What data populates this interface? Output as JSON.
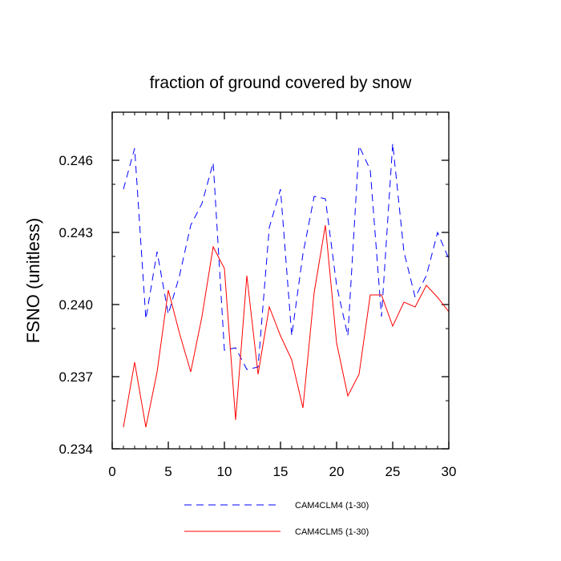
{
  "chart_data": {
    "type": "line",
    "title": "fraction of ground covered by snow",
    "xlabel": "",
    "ylabel": "FSNO  (unitless)",
    "xlim": [
      0,
      30
    ],
    "ylim": [
      0.234,
      0.248
    ],
    "x_ticks": [
      0,
      5,
      10,
      15,
      20,
      25,
      30
    ],
    "x_tick_labels": [
      "0",
      "5",
      "10",
      "15",
      "20",
      "25",
      "30"
    ],
    "y_ticks": [
      0.234,
      0.237,
      0.24,
      0.243,
      0.246
    ],
    "y_tick_labels": [
      "0.234",
      "0.237",
      "0.240",
      "0.243",
      "0.246"
    ],
    "grid": false,
    "legend_position": "bottom",
    "x": [
      1,
      2,
      3,
      4,
      5,
      6,
      7,
      8,
      9,
      10,
      11,
      12,
      13,
      14,
      15,
      16,
      17,
      18,
      19,
      20,
      21,
      22,
      23,
      24,
      25,
      26,
      27,
      28,
      29,
      30
    ],
    "series": [
      {
        "name": "CAM4CLM4 (1-30)",
        "color": "#0000ff",
        "dash": "dashed",
        "values": [
          0.2448,
          0.2465,
          0.2394,
          0.2422,
          0.2396,
          0.2412,
          0.2433,
          0.2442,
          0.2459,
          0.2381,
          0.2382,
          0.2373,
          0.2374,
          0.2432,
          0.2448,
          0.2387,
          0.2421,
          0.2445,
          0.2444,
          0.2408,
          0.2387,
          0.2466,
          0.2456,
          0.2395,
          0.2467,
          0.2422,
          0.2403,
          0.2412,
          0.243,
          0.2419
        ]
      },
      {
        "name": "CAM4CLM5 (1-30)",
        "color": "#ff0000",
        "dash": "solid",
        "values": [
          0.2349,
          0.2376,
          0.2349,
          0.2372,
          0.2406,
          0.2388,
          0.2372,
          0.2395,
          0.2424,
          0.2415,
          0.2352,
          0.2412,
          0.2371,
          0.2399,
          0.2387,
          0.2377,
          0.2357,
          0.2405,
          0.2433,
          0.2384,
          0.2362,
          0.2371,
          0.2404,
          0.2404,
          0.2391,
          0.2401,
          0.2399,
          0.2408,
          0.2403,
          0.2397
        ]
      }
    ]
  }
}
